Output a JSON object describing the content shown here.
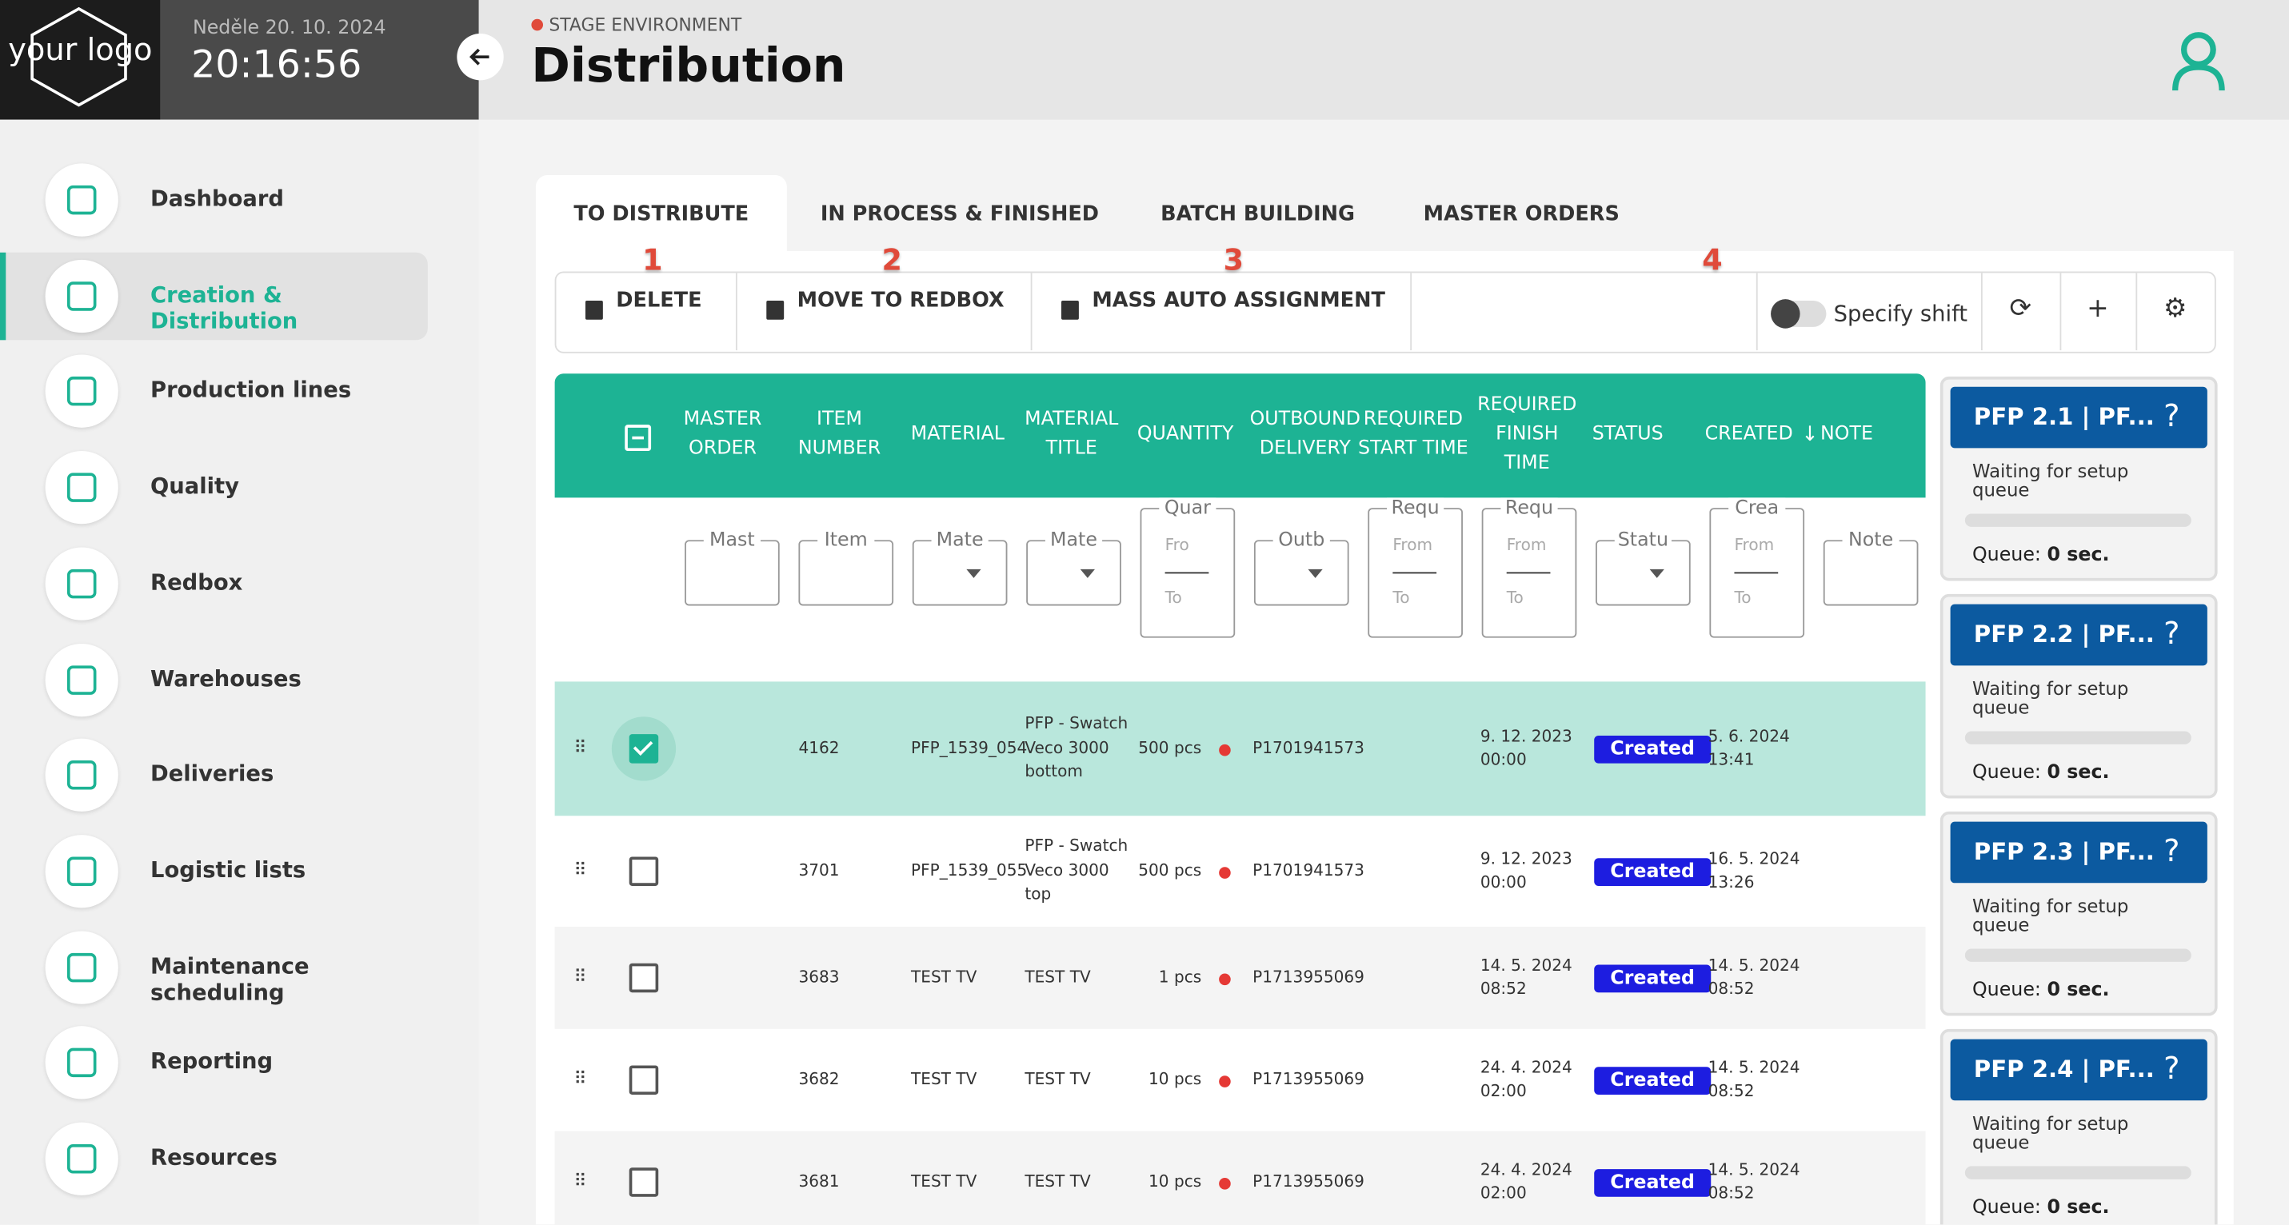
{
  "logo": "your logo",
  "header": {
    "date": "Neděle 20. 10. 2024",
    "time": "20:16:56",
    "environment": "STAGE ENVIRONMENT",
    "title": "Distribution"
  },
  "sidebar": {
    "active": 1,
    "items": [
      "Dashboard",
      "Creation & Distribution",
      "Production lines",
      "Quality",
      "Redbox",
      "Warehouses",
      "Deliveries",
      "Logistic lists",
      "Maintenance scheduling",
      "Reporting",
      "Resources"
    ]
  },
  "tabs": {
    "active": 0,
    "items": [
      "TO DISTRIBUTE",
      "IN PROCESS & FINISHED",
      "BATCH BUILDING",
      "MASTER ORDERS"
    ]
  },
  "toolbar": {
    "actions": [
      "DELETE",
      "MOVE TO REDBOX",
      "MASS AUTO ASSIGNMENT"
    ],
    "markers": [
      "1",
      "2",
      "3",
      "4"
    ],
    "shift_label": "Specify shift"
  },
  "table": {
    "columns": [
      "MASTER ORDER",
      "ITEM NUMBER",
      "MATERIAL",
      "MATERIAL TITLE",
      "QUANTITY",
      "OUTBOUND DELIVERY",
      "REQUIRED START TIME",
      "REQUIRED FINISH TIME",
      "STATUS",
      "CREATED",
      "NOTE"
    ],
    "filters": [
      {
        "label": "Mast"
      },
      {
        "label": "Item"
      },
      {
        "label": "Mate"
      },
      {
        "label": "Mate"
      },
      {
        "label": "Quar",
        "from": "Fro",
        "to": "To"
      },
      {
        "label": "Outb"
      },
      {
        "label": "Requ",
        "from": "From",
        "to": "To"
      },
      {
        "label": "Requ",
        "from": "From",
        "to": "To"
      },
      {
        "label": "Statu"
      },
      {
        "label": "Crea",
        "from": "From",
        "to": "To"
      },
      {
        "label": "Note"
      }
    ],
    "rows": [
      {
        "selected": true,
        "item_number": "4162",
        "material": "PFP_1539_054",
        "material_title": "PFP - Swatch Veco 3000 bottom",
        "quantity": "500 pcs",
        "outbound_delivery": "P1701941573",
        "required_finish_time": "9. 12. 2023 00:00",
        "status": "Created",
        "created": "5. 6. 2024 13:41"
      },
      {
        "selected": false,
        "item_number": "3701",
        "material": "PFP_1539_055",
        "material_title": "PFP - Swatch Veco 3000 top",
        "quantity": "500 pcs",
        "outbound_delivery": "P1701941573",
        "required_finish_time": "9. 12. 2023 00:00",
        "status": "Created",
        "created": "16. 5. 2024 13:26"
      },
      {
        "selected": false,
        "item_number": "3683",
        "material": "TEST TV",
        "material_title": "TEST TV",
        "quantity": "1 pcs",
        "outbound_delivery": "P1713955069",
        "required_finish_time": "14. 5. 2024 08:52",
        "status": "Created",
        "created": "14. 5. 2024 08:52"
      },
      {
        "selected": false,
        "item_number": "3682",
        "material": "TEST TV",
        "material_title": "TEST TV",
        "quantity": "10 pcs",
        "outbound_delivery": "P1713955069",
        "required_finish_time": "24. 4. 2024 02:00",
        "status": "Created",
        "created": "14. 5. 2024 08:52"
      },
      {
        "selected": false,
        "item_number": "3681",
        "material": "TEST TV",
        "material_title": "TEST TV",
        "quantity": "10 pcs",
        "outbound_delivery": "P1713955069",
        "required_finish_time": "24. 4. 2024 02:00",
        "status": "Created",
        "created": "14. 5. 2024 08:52"
      }
    ]
  },
  "queues": [
    {
      "title": "PFP 2.1 | PF...",
      "help": "?",
      "status": "Waiting for setup queue",
      "queue_label": "Queue:",
      "queue_value": "0 sec."
    },
    {
      "title": "PFP 2.2 | PF...",
      "help": "?",
      "status": "Waiting for setup queue",
      "queue_label": "Queue:",
      "queue_value": "0 sec."
    },
    {
      "title": "PFP 2.3 | PF...",
      "help": "?",
      "status": "Waiting for setup queue",
      "queue_label": "Queue:",
      "queue_value": "0 sec."
    },
    {
      "title": "PFP 2.4 | PF...",
      "help": "?",
      "status": "Waiting for setup queue",
      "queue_label": "Queue:",
      "queue_value": "0 sec."
    }
  ]
}
